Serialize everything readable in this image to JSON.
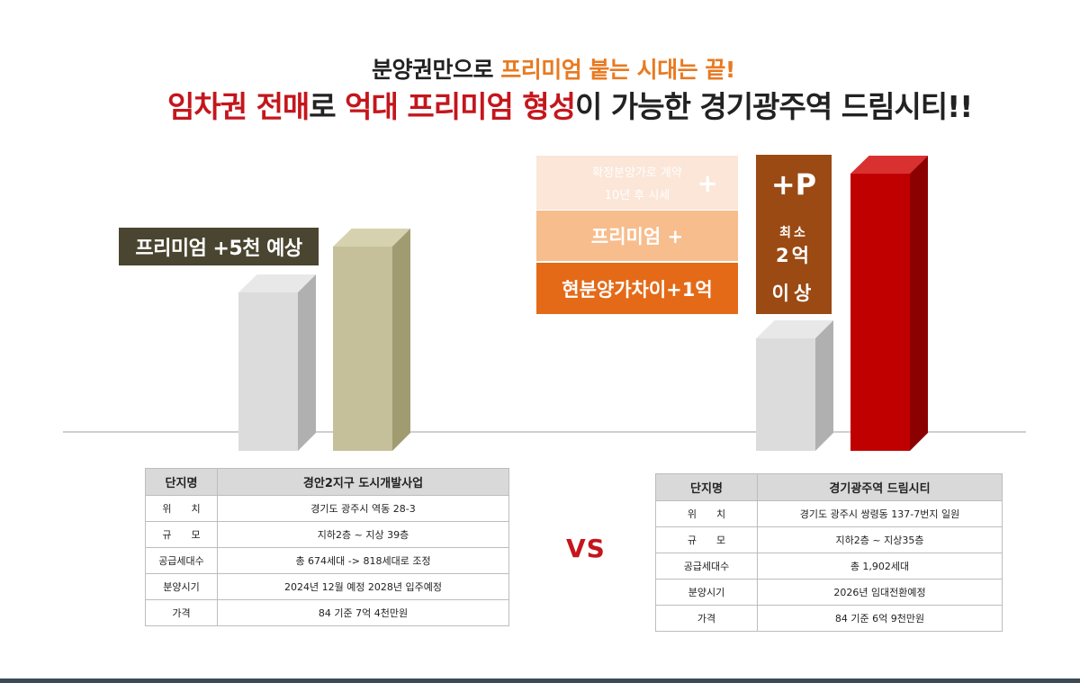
{
  "headline": {
    "line1": {
      "plain": "분양권만으로 ",
      "accent": "프리미엄 붙는 시대는 끝!"
    },
    "line2": {
      "a": "임차권 전매",
      "b": "로 ",
      "c": "억대 프리미엄 형성",
      "d": "이 가능한  경기광주역 드림시티!!"
    }
  },
  "left_visual": {
    "tag": "프리미엄 +5천 예상"
  },
  "right_visual": {
    "box1_line1": "확정분양가로 계약",
    "box1_line2": "10년 후 시세",
    "box1_plus": "+",
    "box2": "프리미엄 +",
    "box3": "현분양가차이+1억",
    "p_title": "+P",
    "p_line1": "최소",
    "p_line2": "2억",
    "p_line3": "이상"
  },
  "vs": "VS",
  "colors": {
    "accent_orange": "#e87a22",
    "accent_red": "#c4161c",
    "bar_grey": "#d9d9d9",
    "bar_khaki": "#c5c09a",
    "bar_red": "#c00000"
  },
  "table_left": {
    "header": [
      "단지명",
      "경안2지구 도시개발사업"
    ],
    "rows": [
      [
        "위　　치",
        "경기도 광주시 역동 28-3"
      ],
      [
        "규　　모",
        "지하2층 ~ 지상 39층"
      ],
      [
        "공급세대수",
        "총 674세대 -> 818세대로 조정"
      ],
      [
        "분양시기",
        "2024년 12월 예정  2028년 입주예정"
      ],
      [
        "가격",
        "84 기준 7억 4천만원"
      ]
    ]
  },
  "table_right": {
    "header": [
      "단지명",
      "경기광주역 드림시티"
    ],
    "rows": [
      [
        "위　　치",
        "경기도 광주시 쌍령동 137-7번지 일원"
      ],
      [
        "규　　모",
        "지하2층 ~ 지상35층"
      ],
      [
        "공급세대수",
        "총 1,902세대"
      ],
      [
        "분양시기",
        "2026년 임대전환예정"
      ],
      [
        "가격",
        "84 기준 6억 9천만원"
      ]
    ]
  }
}
